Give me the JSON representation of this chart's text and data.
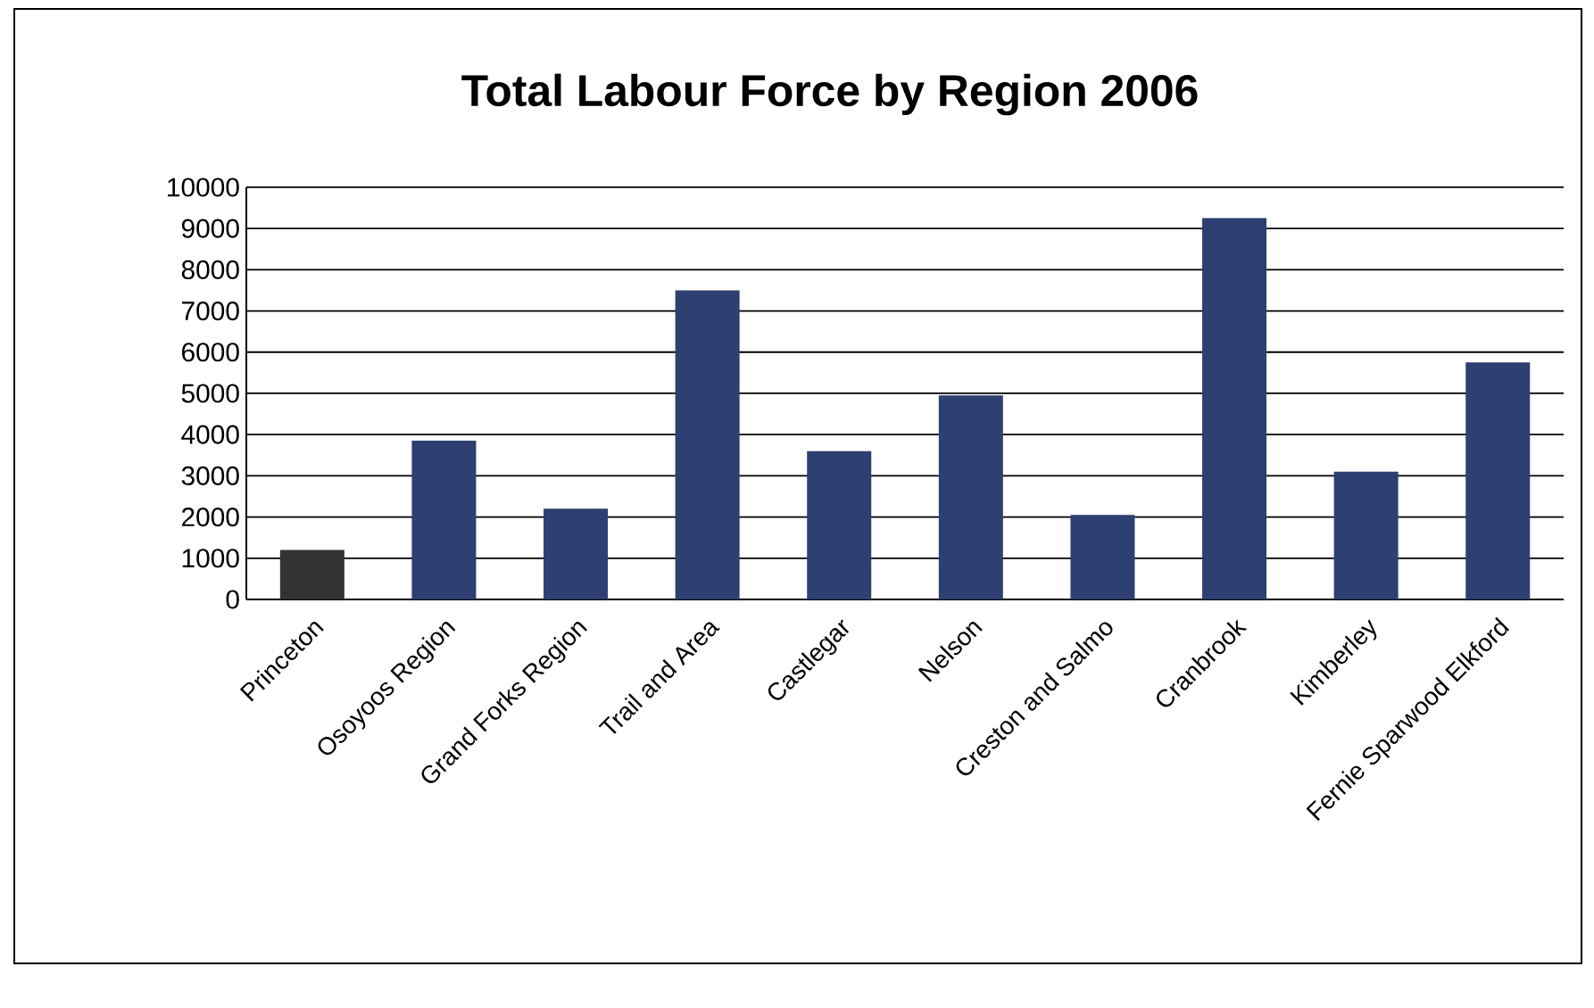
{
  "chart_data": {
    "type": "bar",
    "title": "Total Labour Force by Region 2006",
    "categories": [
      "Princeton",
      "Osoyoos Region",
      "Grand Forks Region",
      "Trail and Area",
      "Castlegar",
      "Nelson",
      "Creston and Salmo",
      "Cranbrook",
      "Kimberley",
      "Fernie Sparwood Elkford"
    ],
    "values": [
      1200,
      3850,
      2200,
      7500,
      3600,
      4950,
      2050,
      9250,
      3100,
      5750
    ],
    "colors": [
      "#333333",
      "#2e3f72",
      "#2e3f72",
      "#2e3f72",
      "#2e3f72",
      "#2e3f72",
      "#2e3f72",
      "#2e3f72",
      "#2e3f72",
      "#2e3f72"
    ],
    "ylim": [
      0,
      10000
    ],
    "yticks": [
      0,
      1000,
      2000,
      3000,
      4000,
      5000,
      6000,
      7000,
      8000,
      9000,
      10000
    ],
    "grid": "y"
  }
}
